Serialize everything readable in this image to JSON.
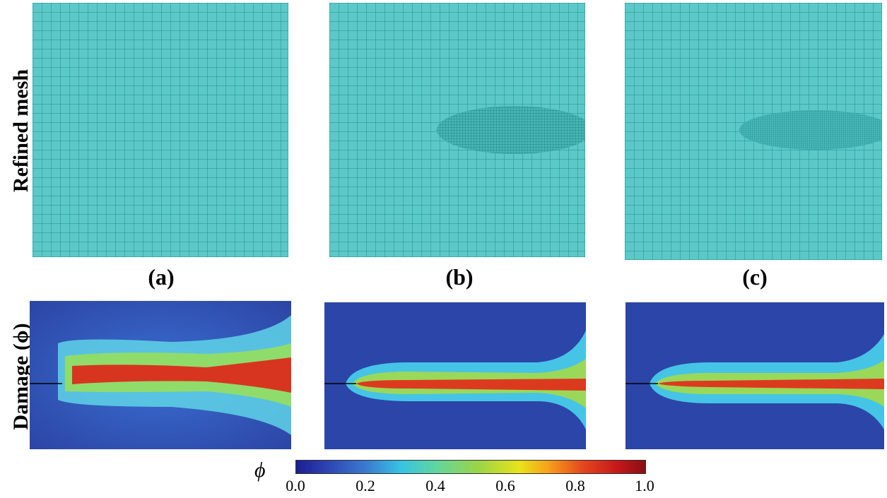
{
  "row_labels": {
    "mesh": "Refined mesh",
    "damage": "Damage (ϕ)"
  },
  "panels": {
    "a": {
      "caption": "(a)"
    },
    "b": {
      "caption": "(b)"
    },
    "c": {
      "caption": "(c)"
    }
  },
  "colorbar": {
    "symbol": "ϕ",
    "ticks": [
      "0.0",
      "0.2",
      "0.4",
      "0.6",
      "0.8",
      "1.0"
    ]
  },
  "colors": {
    "mesh_fill": "#5dc8c8",
    "mesh_line": "#1a8f90",
    "damage_background": "#2a44a8",
    "damage_core": "#e0301c"
  }
}
